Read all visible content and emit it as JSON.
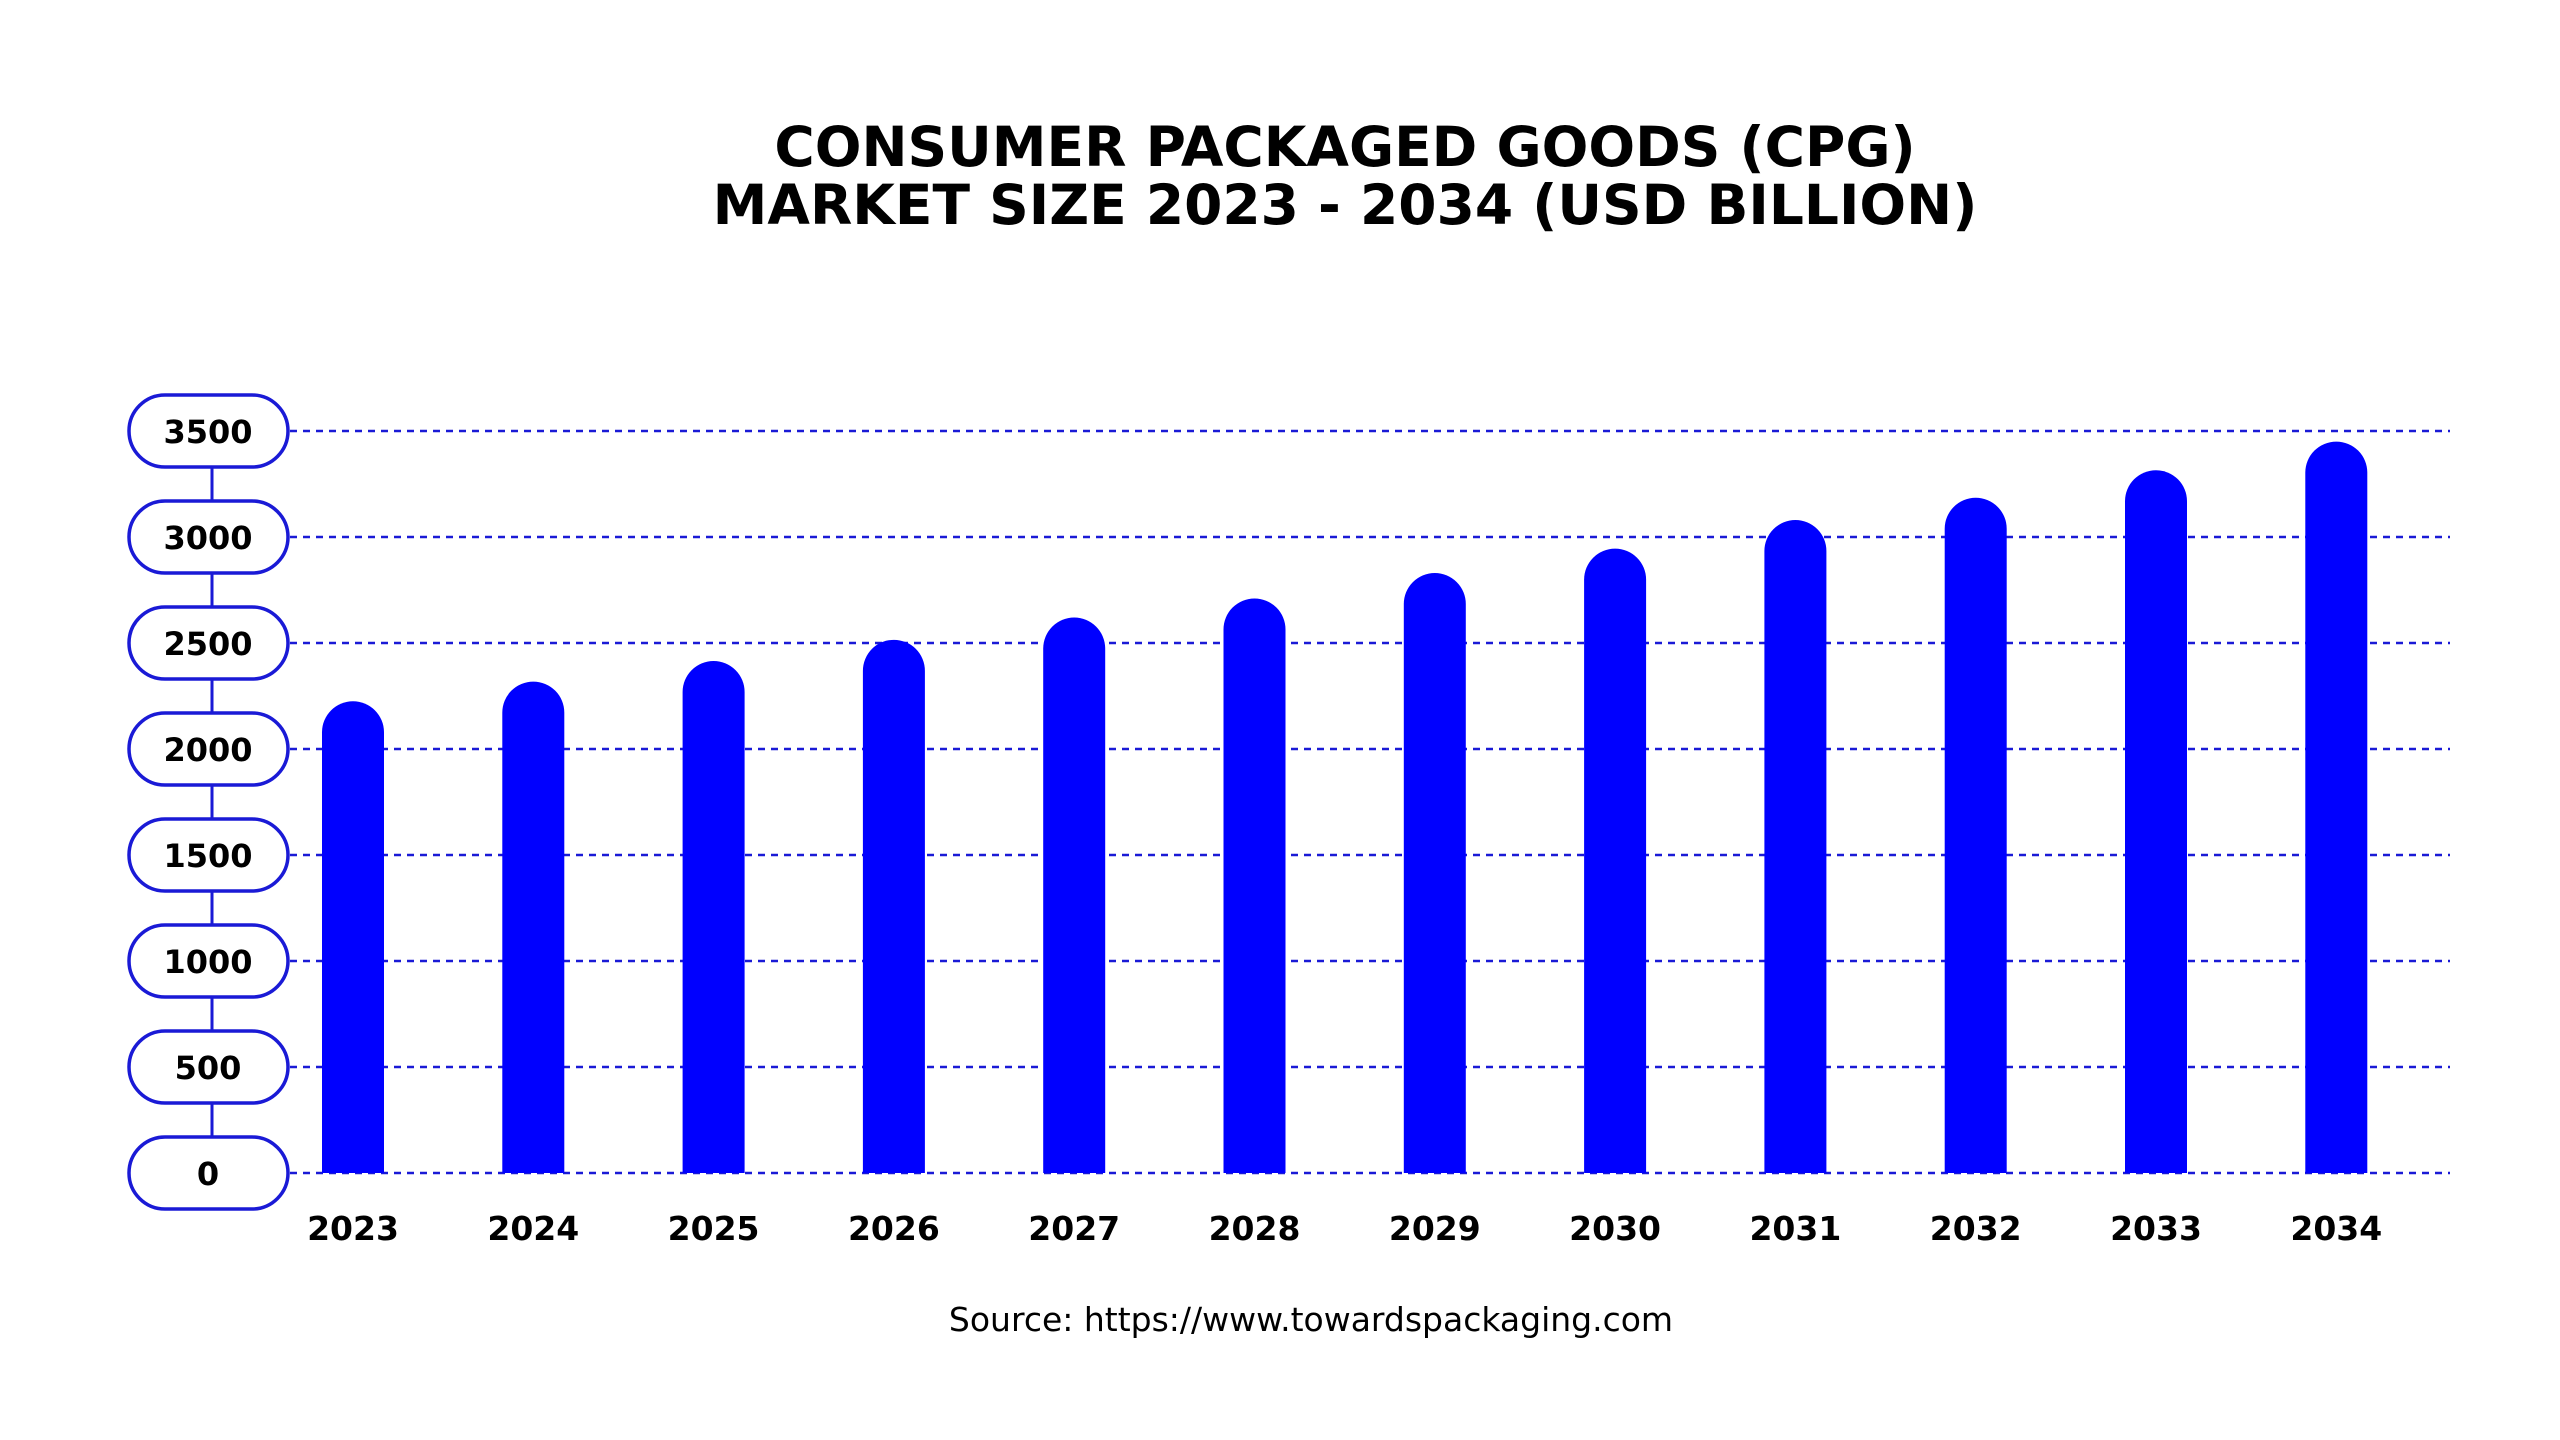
{
  "title": {
    "line1": "CONSUMER PACKAGED GOODS (CPG)",
    "line2": "MARKET SIZE 2023 - 2034 (USD BILLION)"
  },
  "source": "Source: https://www.towardspackaging.com",
  "colors": {
    "bar": "#0000ff",
    "axis": "#1a1ad6",
    "grid": "#1a1ad6",
    "text": "#000000",
    "background": "#ffffff"
  },
  "chart_data": {
    "type": "bar",
    "title": "CONSUMER PACKAGED GOODS (CPG) MARKET SIZE 2023 - 2034 (USD BILLION)",
    "categories": [
      "2023",
      "2024",
      "2025",
      "2026",
      "2027",
      "2028",
      "2029",
      "2030",
      "2031",
      "2032",
      "2033",
      "2034"
    ],
    "values": [
      2225,
      2318,
      2415,
      2515,
      2620,
      2710,
      2830,
      2945,
      3080,
      3185,
      3315,
      3450
    ],
    "yticks": [
      0,
      500,
      1000,
      1500,
      2000,
      2500,
      3000,
      3500
    ],
    "ylim": [
      0,
      3500
    ],
    "xlabel": "",
    "ylabel": "",
    "grid": true,
    "legend": "none"
  }
}
